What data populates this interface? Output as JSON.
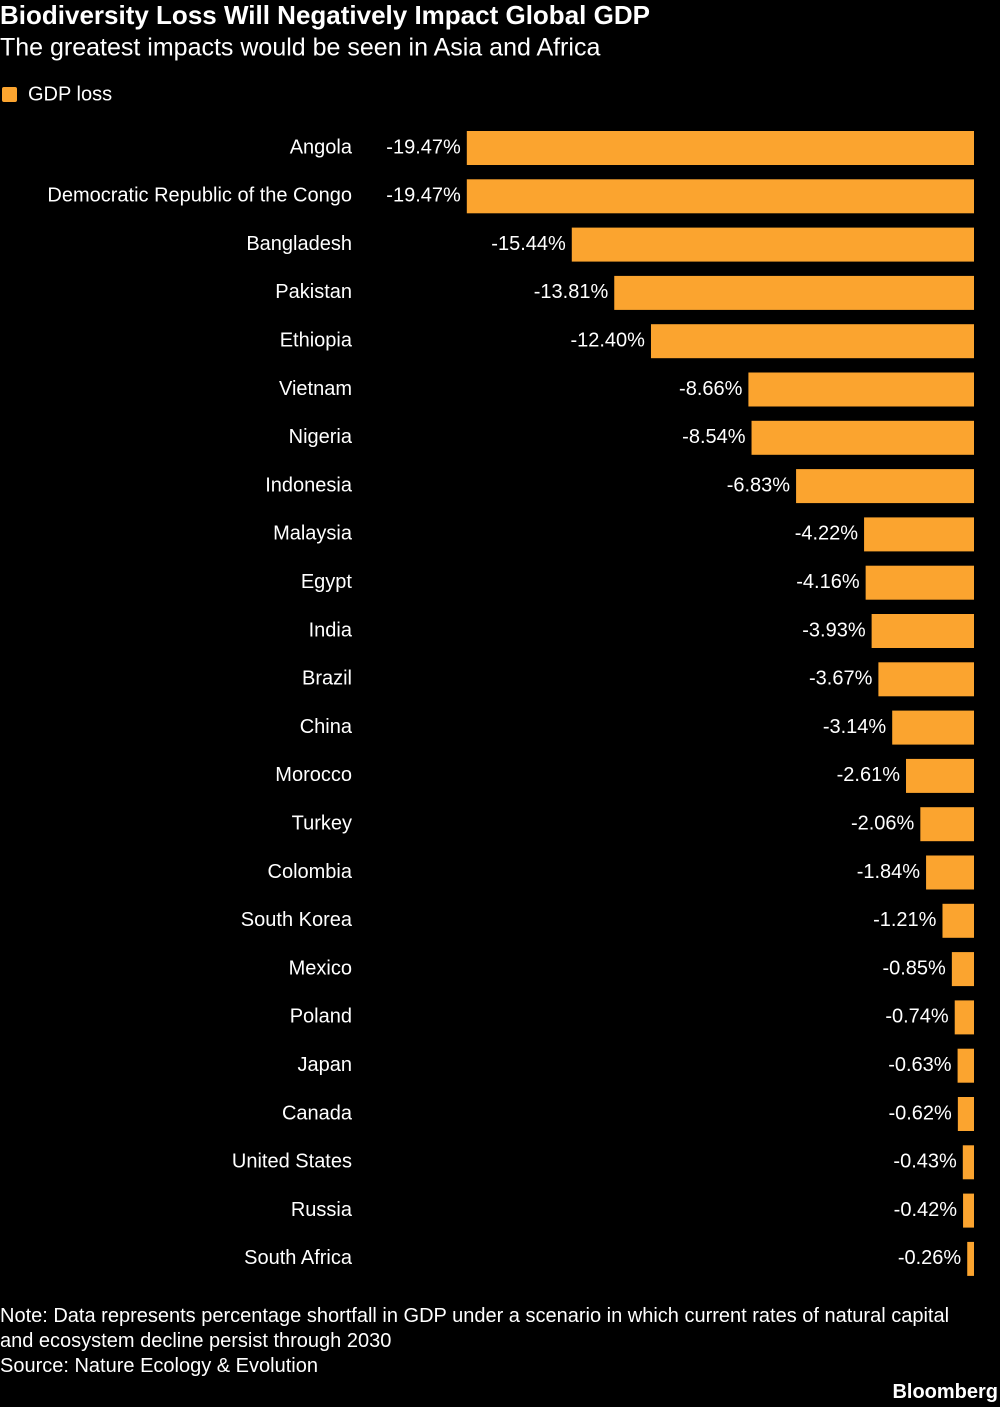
{
  "chart_data": {
    "type": "hbar",
    "title": "Biodiversity Loss Will Negatively Impact Global GDP",
    "subtitle": "The greatest impacts would be seen in Asia and Africa",
    "categories": [
      "Angola",
      "Democratic Republic of the Congo",
      "Bangladesh",
      "Pakistan",
      "Ethiopia",
      "Vietnam",
      "Nigeria",
      "Indonesia",
      "Malaysia",
      "Egypt",
      "India",
      "Brazil",
      "China",
      "Morocco",
      "Turkey",
      "Colombia",
      "South Korea",
      "Mexico",
      "Poland",
      "Japan",
      "Canada",
      "United States",
      "Russia",
      "South Africa"
    ],
    "series": [
      {
        "name": "GDP loss",
        "color": "#fba42f",
        "values": [
          -19.47,
          -19.47,
          -15.44,
          -13.81,
          -12.4,
          -8.66,
          -8.54,
          -6.83,
          -4.22,
          -4.16,
          -3.93,
          -3.67,
          -3.14,
          -2.61,
          -2.06,
          -1.84,
          -1.21,
          -0.85,
          -0.74,
          -0.63,
          -0.62,
          -0.43,
          -0.42,
          -0.26
        ],
        "value_labels": [
          "-19.47%",
          "-19.47%",
          "-15.44%",
          "-13.81%",
          "-12.40%",
          "-8.66%",
          "-8.54%",
          "-6.83%",
          "-4.22%",
          "-4.16%",
          "-3.93%",
          "-3.67%",
          "-3.14%",
          "-2.61%",
          "-2.06%",
          "-1.84%",
          "-1.21%",
          "-0.85%",
          "-0.74%",
          "-0.63%",
          "-0.62%",
          "-0.43%",
          "-0.42%",
          "-0.26%"
        ]
      }
    ],
    "xlim": [
      -20,
      0
    ],
    "note": "Note: Data represents percentage shortfall in GDP under a scenario in which current rates of natural capital and ecosystem decline persist through 2030",
    "source": "Source: Nature Ecology & Evolution",
    "credit": "Bloomberg"
  }
}
